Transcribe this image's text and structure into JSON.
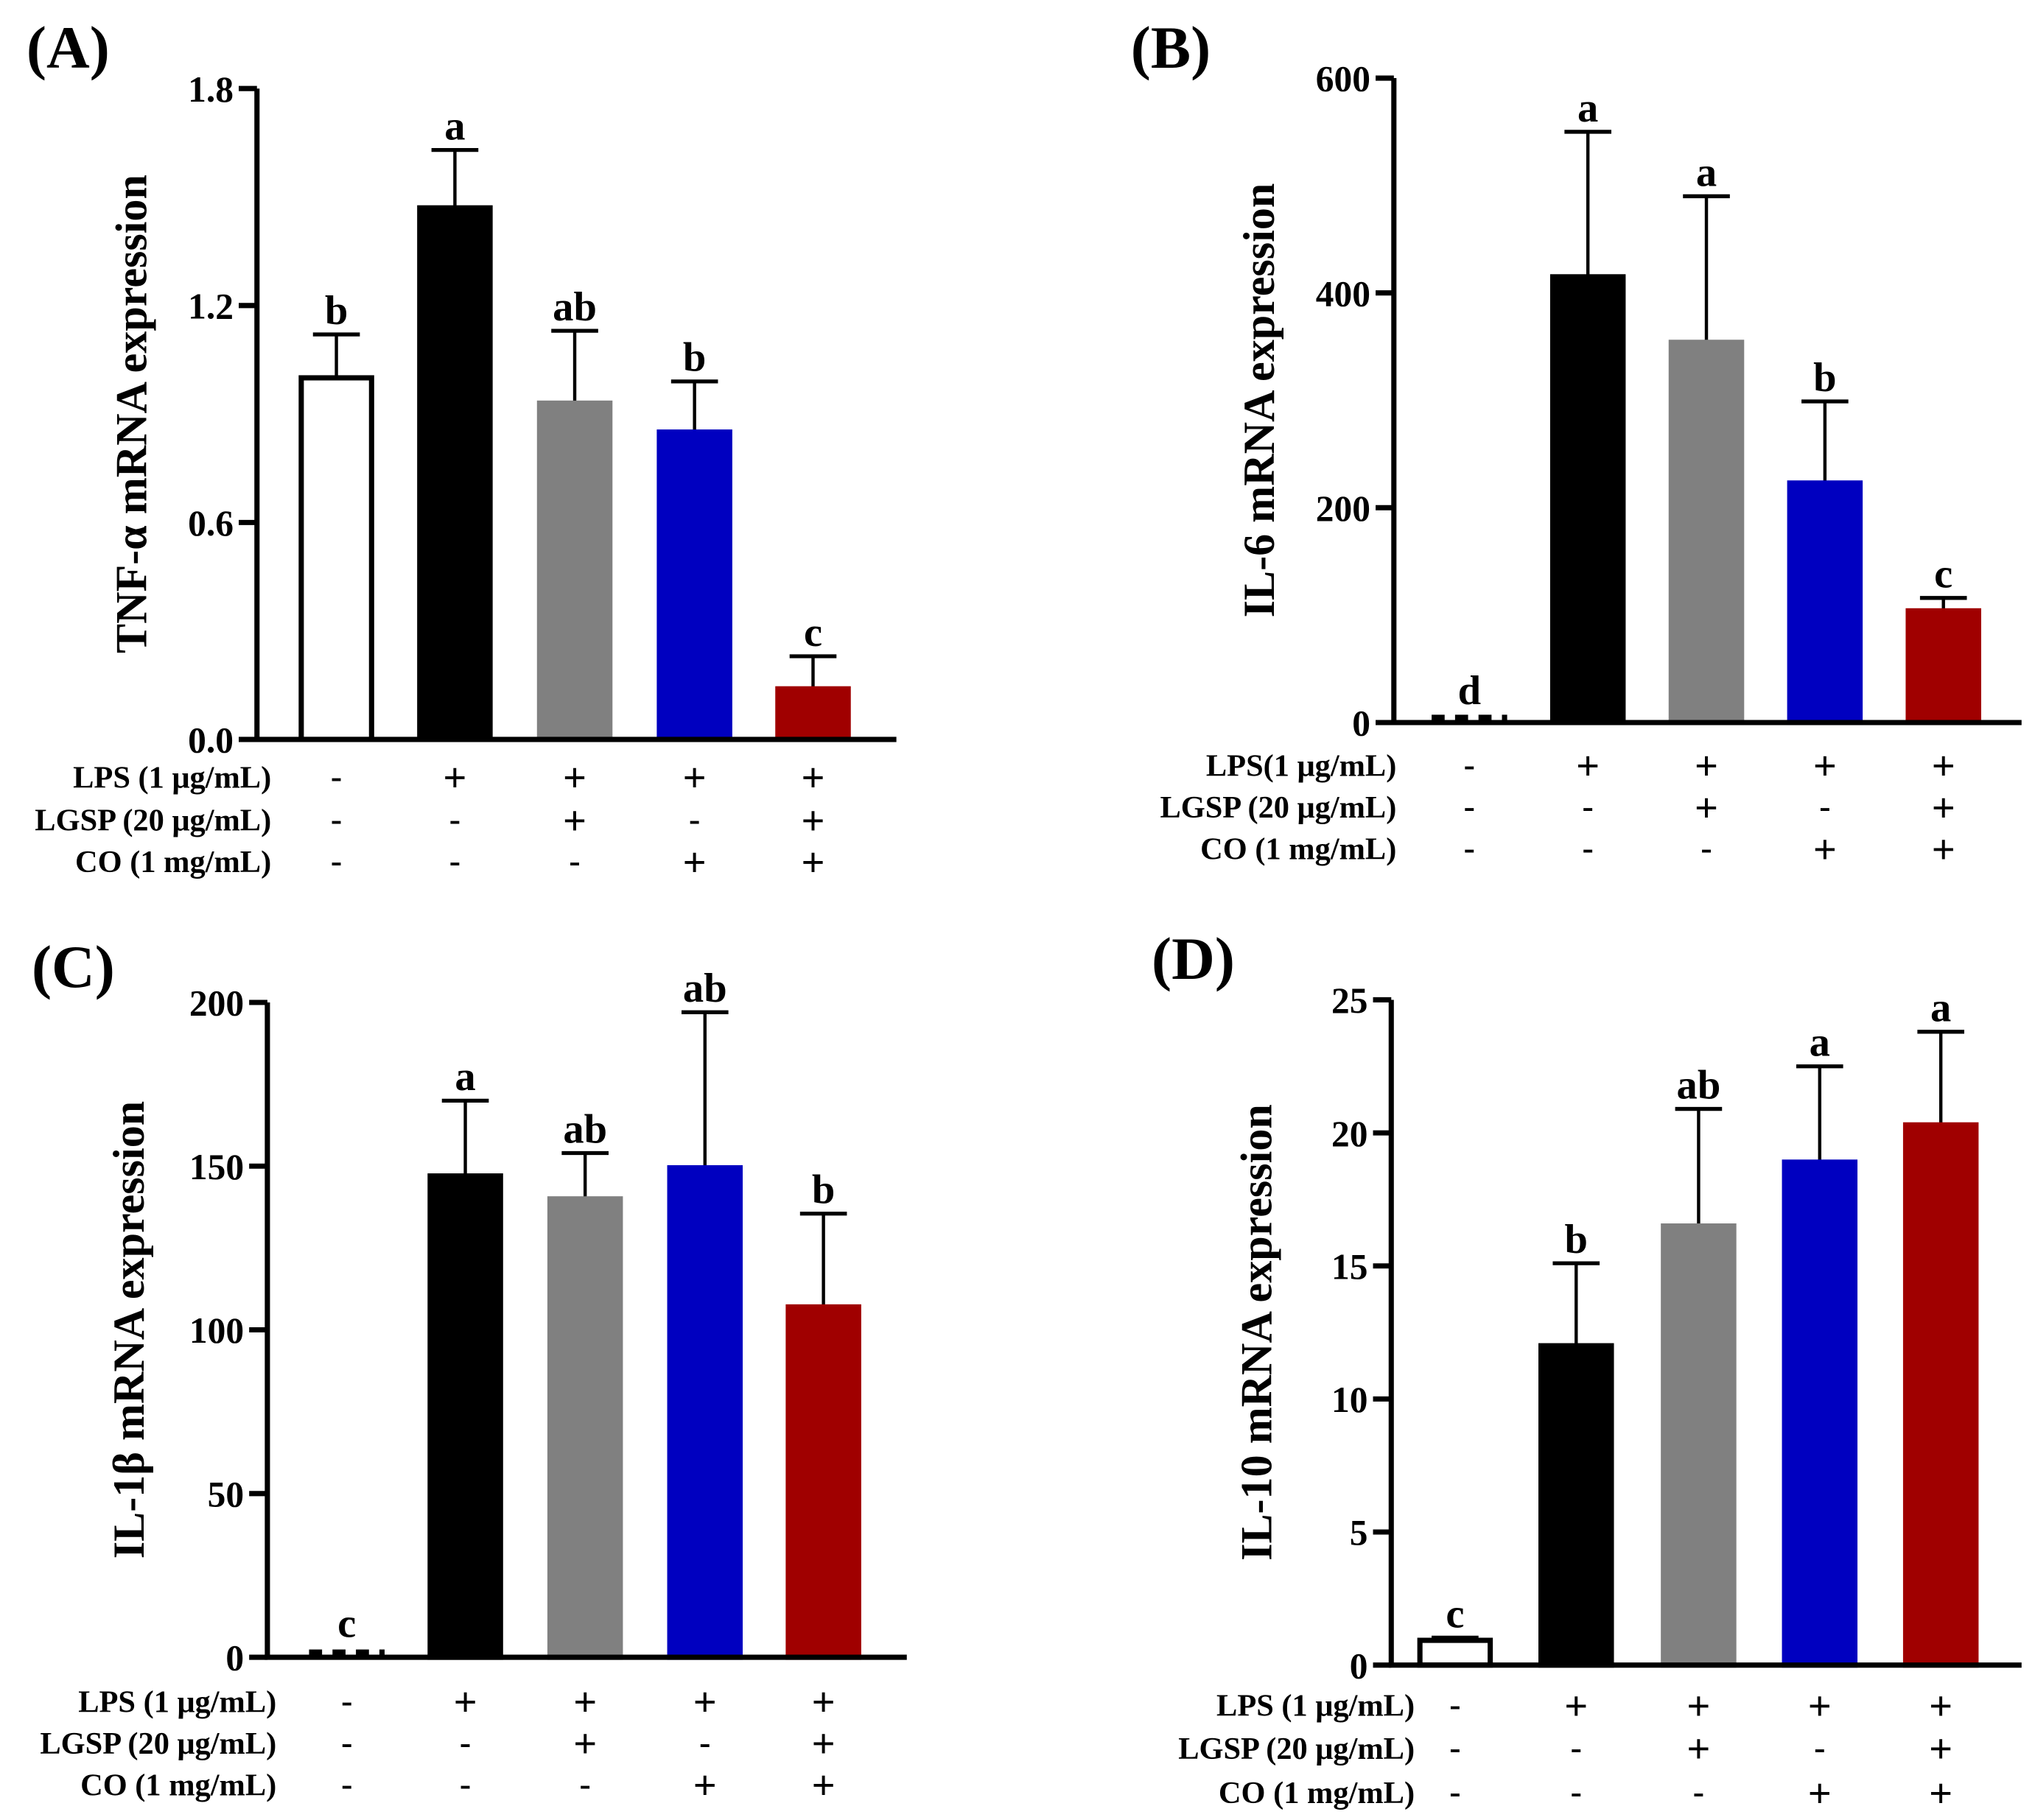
{
  "chart_data": [
    {
      "type": "bar",
      "panel_label": "(A)",
      "ylabel": "TNF-α mRNA expression",
      "ylim": [
        0,
        1.8
      ],
      "yticks": [
        "0.0",
        "0.6",
        "1.2",
        "1.8"
      ],
      "ytick_values": [
        0,
        0.6,
        1.2,
        1.8
      ],
      "values": [
        1.0,
        1.47,
        0.93,
        0.85,
        0.14
      ],
      "errors": [
        0.12,
        0.16,
        0.2,
        0.14,
        0.09
      ],
      "letters": [
        "b",
        "a",
        "ab",
        "b",
        "c"
      ],
      "colors": [
        "#ffffff",
        "#000000",
        "#808080",
        "#0000c0",
        "#a00000"
      ],
      "conditions": [
        {
          "label": "LPS (1 μg/mL)",
          "signs": [
            "-",
            "+",
            "+",
            "+",
            "+"
          ]
        },
        {
          "label": "LGSP (20 μg/mL)",
          "signs": [
            "-",
            "-",
            "+",
            "-",
            "+"
          ]
        },
        {
          "label": "CO (1 mg/mL)",
          "signs": [
            "-",
            "-",
            "-",
            "+",
            "+"
          ]
        }
      ]
    },
    {
      "type": "bar",
      "panel_label": "(B)",
      "ylabel": "IL-6 mRNA expression",
      "ylim": [
        0,
        600
      ],
      "yticks": [
        "0",
        "200",
        "400",
        "600"
      ],
      "ytick_values": [
        0,
        200,
        400,
        600
      ],
      "values": [
        4,
        415,
        354,
        223,
        104
      ],
      "errors": [
        0,
        135,
        136,
        76,
        12
      ],
      "letters": [
        "d",
        "a",
        "a",
        "b",
        "c"
      ],
      "colors": [
        "#ffffff",
        "#000000",
        "#808080",
        "#0000c0",
        "#a00000"
      ],
      "conditions": [
        {
          "label": "LPS(1 μg/mL)",
          "signs": [
            "-",
            "+",
            "+",
            "+",
            "+"
          ]
        },
        {
          "label": "LGSP (20 μg/mL)",
          "signs": [
            "-",
            "-",
            "+",
            "-",
            "+"
          ]
        },
        {
          "label": "CO (1 mg/mL)",
          "signs": [
            "-",
            "-",
            "-",
            "+",
            "+"
          ]
        }
      ]
    },
    {
      "type": "bar",
      "panel_label": "(C)",
      "ylabel": "IL-1β mRNA expression",
      "ylim": [
        0,
        200
      ],
      "yticks": [
        "0",
        "50",
        "100",
        "150",
        "200"
      ],
      "ytick_values": [
        0,
        50,
        100,
        150,
        200
      ],
      "values": [
        3,
        147,
        140,
        149.5,
        107
      ],
      "errors": [
        0,
        23,
        14,
        47.5,
        28.5
      ],
      "letters": [
        "c",
        "a",
        "ab",
        "ab",
        "b"
      ],
      "colors": [
        "#ffffff",
        "#000000",
        "#808080",
        "#0000c0",
        "#a00000"
      ],
      "conditions": [
        {
          "label": "LPS (1 μg/mL)",
          "signs": [
            "-",
            "+",
            "+",
            "+",
            "+"
          ]
        },
        {
          "label": "LGSP (20 μg/mL)",
          "signs": [
            "-",
            "-",
            "+",
            "-",
            "+"
          ]
        },
        {
          "label": "CO (1 mg/mL)",
          "signs": [
            "-",
            "-",
            "-",
            "+",
            "+"
          ]
        }
      ]
    },
    {
      "type": "bar",
      "panel_label": "(D)",
      "ylabel": "IL-10 mRNA expression",
      "ylim": [
        0,
        25
      ],
      "yticks": [
        "0",
        "5",
        "10",
        "15",
        "20",
        "25"
      ],
      "ytick_values": [
        0,
        5,
        10,
        15,
        20,
        25
      ],
      "values": [
        0.93,
        12.0,
        16.5,
        18.9,
        20.3
      ],
      "errors": [
        0.1,
        3.1,
        4.4,
        3.6,
        3.5
      ],
      "letters": [
        "c",
        "b",
        "ab",
        "a",
        "a"
      ],
      "colors": [
        "#ffffff",
        "#000000",
        "#808080",
        "#0000c0",
        "#a00000"
      ],
      "conditions": [
        {
          "label": "LPS (1 μg/mL)",
          "signs": [
            "-",
            "+",
            "+",
            "+",
            "+"
          ]
        },
        {
          "label": "LGSP (20 μg/mL)",
          "signs": [
            "-",
            "-",
            "+",
            "-",
            "+"
          ]
        },
        {
          "label": "CO (1 mg/mL)",
          "signs": [
            "-",
            "-",
            "-",
            "+",
            "+"
          ]
        }
      ]
    }
  ]
}
